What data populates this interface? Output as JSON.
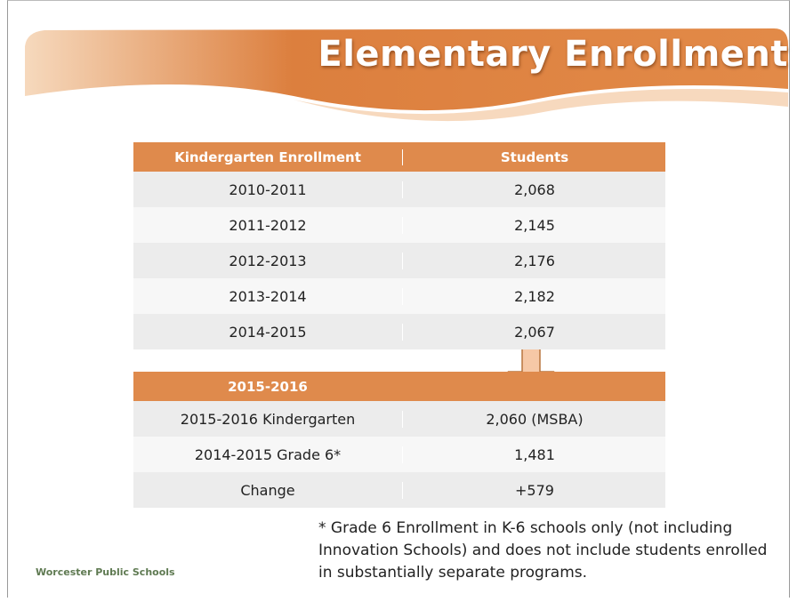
{
  "header": {
    "title": "Elementary Enrollment"
  },
  "kindergarten_table": {
    "columns": [
      "Kindergarten Enrollment",
      "Students"
    ],
    "rows": [
      [
        "2010-2011",
        "2,068"
      ],
      [
        "2011-2012",
        "2,145"
      ],
      [
        "2012-2013",
        "2,176"
      ],
      [
        "2013-2014",
        "2,182"
      ],
      [
        "2014-2015",
        "2,067"
      ]
    ]
  },
  "projection_table": {
    "columns": [
      "2015-2016",
      ""
    ],
    "rows": [
      [
        "2015-2016 Kindergarten",
        "2,060 (MSBA)"
      ],
      [
        "2014-2015 Grade 6*",
        "1,481"
      ],
      [
        "Change",
        "+579"
      ]
    ]
  },
  "footnote": "* Grade 6 Enrollment in K-6 schools only (not including Innovation Schools) and does not include students enrolled in substantially separate programs.",
  "footer": {
    "organization": "Worcester Public Schools"
  }
}
